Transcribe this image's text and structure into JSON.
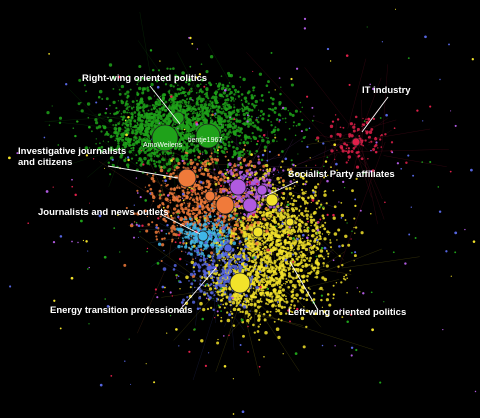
{
  "clusters": [
    {
      "id": "right",
      "label": "Right-wing oriented politics",
      "color": "#1fa21a"
    },
    {
      "id": "it",
      "label": "IT industry",
      "color": "#e0204a"
    },
    {
      "id": "invest",
      "label": "Investigative journalists\nand citizens",
      "color": "#f07a3a"
    },
    {
      "id": "socialist",
      "label": "Socialist Party affiliates",
      "color": "#b05ae0"
    },
    {
      "id": "journal",
      "label": "Journalists and news outlets",
      "color": "#3fb6e8"
    },
    {
      "id": "energy",
      "label": "Energy transition professionals",
      "color": "#5565e0"
    },
    {
      "id": "left",
      "label": "Left-wing oriented politics",
      "color": "#f2e22a"
    }
  ],
  "node_labels": [
    "AmoWeilens",
    "tientje1967"
  ]
}
